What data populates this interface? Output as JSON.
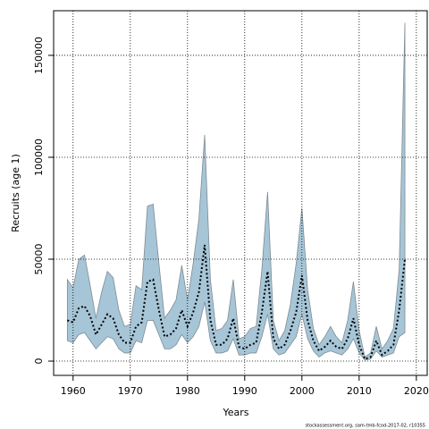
{
  "chart_data": {
    "type": "line",
    "xlabel": "Years",
    "ylabel": "Recruits (age 1)",
    "footnote": "stockassessment.org, sam-tmb-fcod-2017-02, r10355",
    "x": [
      1959,
      1960,
      1961,
      1962,
      1963,
      1964,
      1965,
      1966,
      1967,
      1968,
      1969,
      1970,
      1971,
      1972,
      1973,
      1974,
      1975,
      1976,
      1977,
      1978,
      1979,
      1980,
      1981,
      1982,
      1983,
      1984,
      1985,
      1986,
      1987,
      1988,
      1989,
      1990,
      1991,
      1992,
      1993,
      1994,
      1995,
      1996,
      1997,
      1998,
      1999,
      2000,
      2001,
      2002,
      2003,
      2004,
      2005,
      2006,
      2007,
      2008,
      2009,
      2010,
      2011,
      2012,
      2013,
      2014,
      2015,
      2016,
      2017,
      2018
    ],
    "series": [
      {
        "color": "#000000",
        "values": [
          20000,
          19000,
          26000,
          27000,
          22000,
          13000,
          18000,
          23000,
          21000,
          13000,
          9000,
          9000,
          17000,
          19000,
          39000,
          40000,
          25000,
          12000,
          13000,
          16000,
          25000,
          17000,
          24000,
          34000,
          57000,
          20000,
          8000,
          8000,
          11000,
          21000,
          7000,
          6000,
          8000,
          9000,
          24000,
          44000,
          11000,
          6000,
          8000,
          15000,
          24000,
          42000,
          20000,
          10000,
          5000,
          7000,
          10000,
          7000,
          6000,
          11000,
          21000,
          8000,
          1000,
          2000,
          10000,
          3000,
          5000,
          8000,
          25000,
          50000
        ]
      }
    ],
    "band": {
      "color": "#a6c5d7",
      "upper": [
        40000,
        36000,
        50000,
        52000,
        37000,
        21000,
        34000,
        44000,
        41000,
        25000,
        17000,
        18000,
        37000,
        35000,
        76000,
        77000,
        48000,
        21000,
        25000,
        30000,
        47000,
        30000,
        48000,
        70000,
        111000,
        40000,
        15000,
        16000,
        20000,
        40000,
        11000,
        12000,
        16000,
        17000,
        45000,
        83000,
        20000,
        10000,
        15000,
        28000,
        48000,
        75000,
        35000,
        16000,
        8000,
        12000,
        17000,
        12000,
        9000,
        20000,
        39000,
        15000,
        2000,
        4000,
        17000,
        6000,
        10000,
        16000,
        45000,
        166000
      ],
      "lower": [
        10000,
        9000,
        13000,
        14000,
        10000,
        6000,
        9000,
        12000,
        11000,
        6000,
        4000,
        4000,
        10000,
        9000,
        20000,
        20000,
        13000,
        6000,
        6000,
        8000,
        13000,
        9000,
        12000,
        17000,
        29000,
        10000,
        4000,
        4000,
        5000,
        11000,
        3000,
        3000,
        4000,
        4000,
        12000,
        23000,
        6000,
        3000,
        4000,
        8000,
        12000,
        23000,
        11000,
        5000,
        2000,
        4000,
        5000,
        4000,
        3000,
        6000,
        11000,
        4000,
        500,
        1000,
        5000,
        2000,
        3000,
        4000,
        12000,
        14000
      ]
    },
    "xlim": [
      1956.6,
      2021.9
    ],
    "xticks": [
      1960,
      1970,
      1980,
      1990,
      2000,
      2010,
      2020
    ],
    "ylim": [
      -7000,
      171900
    ],
    "yticks": [
      0,
      50000,
      100000,
      150000
    ],
    "grid": true
  }
}
